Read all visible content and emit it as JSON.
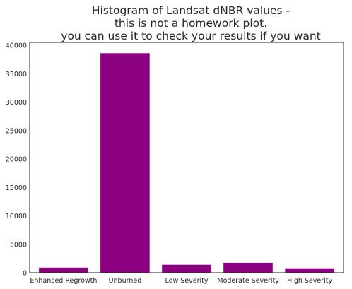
{
  "chart_data": {
    "type": "bar",
    "title_lines": [
      "Histogram of Landsat dNBR values -",
      "this is not a homework plot.",
      "you can use it to check your results if you want"
    ],
    "categories": [
      "Enhanced Regrowth",
      "Unburned",
      "Low Severity",
      "Moderate Severity",
      "High Severity"
    ],
    "values": [
      900,
      38600,
      1400,
      1750,
      780
    ],
    "yticks": [
      "0",
      "5000",
      "10000",
      "15000",
      "20000",
      "25000",
      "30000",
      "35000",
      "40000"
    ],
    "ylim": [
      0,
      40500
    ],
    "grid": false,
    "bar_color": "#8b0080",
    "axis_color": "#262626"
  }
}
